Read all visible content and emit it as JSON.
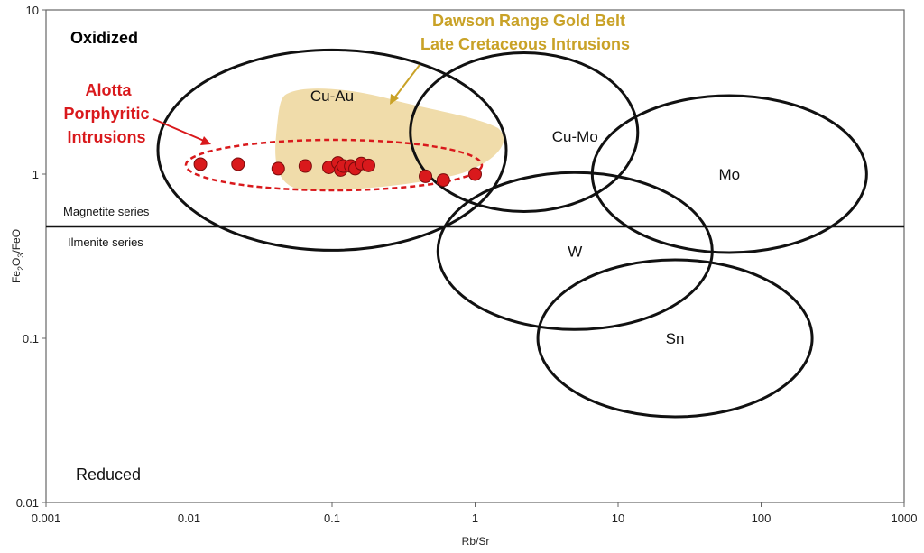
{
  "chart_data": {
    "type": "scatter",
    "xlabel": "Rb/Sr",
    "ylabel": "Fe2O3/FeO",
    "xscale": "log",
    "yscale": "log",
    "xlim": [
      0.001,
      1000
    ],
    "ylim": [
      0.01,
      10
    ],
    "xticks": [
      "0.001",
      "0.01",
      "0.1",
      "1",
      "10",
      "100",
      "1000"
    ],
    "yticks": [
      "0.01",
      "0.1",
      "1",
      "10"
    ],
    "grid": false,
    "colors": {
      "points": "#d9191c",
      "gold_field": "#f0dcaa",
      "gold_text": "#c9a227",
      "red_text": "#d9191c",
      "fields": "#111111"
    },
    "series": [
      {
        "name": "Alotta Porphyritic Intrusions",
        "points": [
          {
            "x": 0.012,
            "y": 1.15
          },
          {
            "x": 0.022,
            "y": 1.15
          },
          {
            "x": 0.042,
            "y": 1.08
          },
          {
            "x": 0.065,
            "y": 1.12
          },
          {
            "x": 0.095,
            "y": 1.1
          },
          {
            "x": 0.11,
            "y": 1.17
          },
          {
            "x": 0.115,
            "y": 1.06
          },
          {
            "x": 0.12,
            "y": 1.12
          },
          {
            "x": 0.135,
            "y": 1.12
          },
          {
            "x": 0.145,
            "y": 1.08
          },
          {
            "x": 0.16,
            "y": 1.16
          },
          {
            "x": 0.18,
            "y": 1.13
          },
          {
            "x": 0.45,
            "y": 0.97
          },
          {
            "x": 0.6,
            "y": 0.92
          },
          {
            "x": 1.0,
            "y": 1.0
          }
        ]
      }
    ],
    "fields": [
      {
        "label": "Cu-Au",
        "cx": 0.1,
        "cy": 1.4,
        "label_x": 0.1,
        "label_y": 3.0
      },
      {
        "label": "Cu-Mo",
        "cx": 2.2,
        "cy": 1.8,
        "label_x": 5.0,
        "label_y": 1.7
      },
      {
        "label": "Mo",
        "cx": 60.0,
        "cy": 1.0,
        "label_x": 60.0,
        "label_y": 1.0
      },
      {
        "label": "W",
        "cx": 5.0,
        "cy": 0.34,
        "label_x": 5.0,
        "label_y": 0.34
      },
      {
        "label": "Sn",
        "cx": 25.0,
        "cy": 0.1,
        "label_x": 25.0,
        "label_y": 0.1
      }
    ],
    "boundary_y": 0.48,
    "annotations": {
      "oxidized": "Oxidized",
      "reduced": "Reduced",
      "magnetite": "Magnetite series",
      "ilmenite": "Ilmenite series",
      "dawson_line1": "Dawson Range Gold Belt",
      "dawson_line2": "Late Cretaceous Intrusions",
      "alotta_line1": "Alotta",
      "alotta_line2": "Porphyritic",
      "alotta_line3": "Intrusions"
    }
  }
}
